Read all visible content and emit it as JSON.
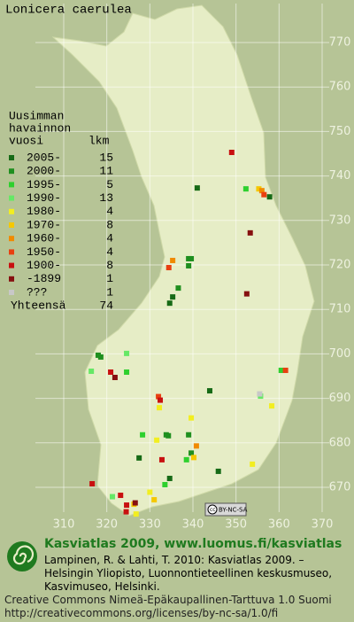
{
  "title": "Lonicera caerulea",
  "legend": {
    "heading": [
      "Uusimman",
      "havainnon"
    ],
    "col_year": "vuosi",
    "col_count": "lkm",
    "classes": [
      {
        "label": "2005-",
        "count": 15,
        "color": "#166a16",
        "points": [
          [
            341,
            737.3
          ],
          [
            357.8,
            735.3
          ],
          [
            335.3,
            712.8
          ],
          [
            334.6,
            711.4
          ],
          [
            343.9,
            691.7
          ],
          [
            345.9,
            673.6
          ],
          [
            334.6,
            672
          ],
          [
            327.5,
            676.6
          ]
        ]
      },
      {
        "label": "2000-",
        "count": 11,
        "color": "#1f8f1f",
        "points": [
          [
            339,
            721.4
          ],
          [
            339.6,
            721.4
          ],
          [
            339,
            719.8
          ],
          [
            336.6,
            714.8
          ],
          [
            318,
            699.7
          ],
          [
            318.6,
            699.3
          ],
          [
            333.8,
            681.8
          ],
          [
            334.3,
            681.6
          ],
          [
            339.6,
            677.7
          ],
          [
            339,
            681.8
          ]
        ]
      },
      {
        "label": "1995-",
        "count": 5,
        "color": "#2ed02e",
        "points": [
          [
            352.3,
            737.1
          ],
          [
            324.6,
            695.9
          ],
          [
            338.5,
            676.2
          ],
          [
            328.3,
            681.8
          ],
          [
            333.5,
            670.6
          ],
          [
            360.5,
            696.3
          ]
        ]
      },
      {
        "label": "1990-",
        "count": 13,
        "color": "#66e866",
        "points": [
          [
            324.6,
            700.1
          ],
          [
            355.7,
            690.5
          ],
          [
            316.4,
            696.1
          ],
          [
            321.3,
            667.9
          ]
        ]
      },
      {
        "label": "1980-",
        "count": 4,
        "color": "#f2ee20",
        "points": [
          [
            332.2,
            687.9
          ],
          [
            358.3,
            688.3
          ],
          [
            331.6,
            680.6
          ],
          [
            339.6,
            685.6
          ],
          [
            353.8,
            675.2
          ],
          [
            330,
            668.9
          ],
          [
            326.8,
            664
          ]
        ]
      },
      {
        "label": "1970-",
        "count": 8,
        "color": "#f5c800",
        "points": [
          [
            355.3,
            737.1
          ],
          [
            340.2,
            676.7
          ],
          [
            331,
            667.2
          ],
          [
            326.3,
            666.2
          ]
        ]
      },
      {
        "label": "1960-",
        "count": 4,
        "color": "#f08a00",
        "points": [
          [
            356,
            736.7
          ],
          [
            335.3,
            721
          ],
          [
            340.8,
            679.3
          ]
        ]
      },
      {
        "label": "1950-",
        "count": 4,
        "color": "#e84010",
        "points": [
          [
            356.5,
            735.8
          ],
          [
            334.4,
            719.4
          ],
          [
            332,
            690.4
          ],
          [
            361.5,
            696.3
          ]
        ]
      },
      {
        "label": "1900-",
        "count": 8,
        "color": "#c81010",
        "points": [
          [
            349,
            745.3
          ],
          [
            320.9,
            695.9
          ],
          [
            332.8,
            676.2
          ],
          [
            323.2,
            668.2
          ],
          [
            324.6,
            666
          ],
          [
            324.5,
            664.5
          ],
          [
            316.6,
            670.8
          ],
          [
            332.4,
            689.6
          ]
        ]
      },
      {
        "label": "-1899",
        "count": 1,
        "color": "#861010",
        "points": [
          [
            353.3,
            727.2
          ],
          [
            352.5,
            713.5
          ],
          [
            321.9,
            694.7
          ],
          [
            326.6,
            666.5
          ]
        ]
      },
      {
        "label": "???",
        "count": 1,
        "color": "#c8c8c8",
        "points": [
          [
            355.5,
            691
          ]
        ]
      }
    ],
    "total_label": "Yhteensä",
    "total": 74
  },
  "xticks": [
    310,
    320,
    330,
    340,
    350,
    360,
    370
  ],
  "yticks": [
    670,
    680,
    690,
    700,
    710,
    720,
    730,
    740,
    750,
    760,
    770
  ],
  "license_badge": "BY-NC-SA",
  "footer": {
    "link": "Kasviatlas 2009, www.luomus.fi/kasviatlas",
    "citation": "Lampinen, R. & Lahti, T. 2010: Kasviatlas 2009. – Helsingin Yliopisto, Luonnontieteellinen keskusmuseo, Kasvimuseo, Helsinki.",
    "license": "Creative Commons Nimeä-Epäkaupallinen-Tarttuva 1.0 Suomi",
    "license_url": "http://creativecommons.org/licenses/by-nc-sa/1.0/fi"
  }
}
